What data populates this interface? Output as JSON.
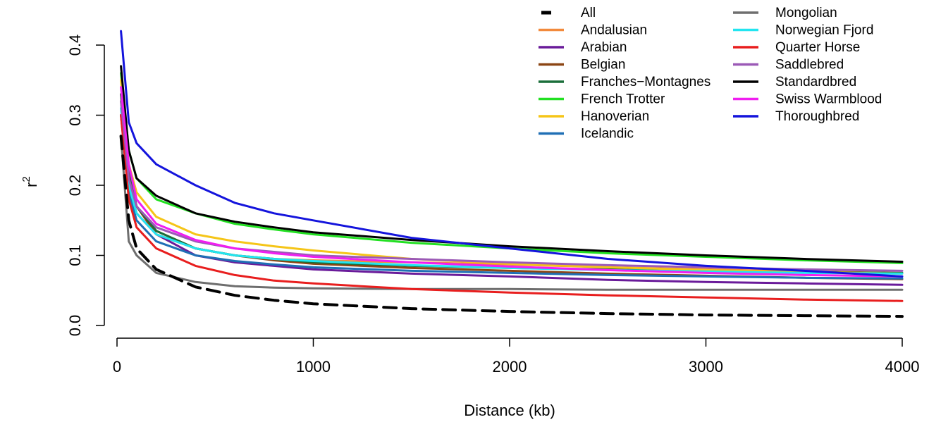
{
  "chart_data": {
    "type": "line",
    "title": "",
    "xlabel": "Distance (kb)",
    "ylabel": "r",
    "ylabel_superscript": "2",
    "xlim": [
      0,
      4000
    ],
    "ylim": [
      0,
      0.42
    ],
    "xticks": [
      0,
      1000,
      2000,
      3000,
      4000
    ],
    "yticks": [
      0.0,
      0.1,
      0.2,
      0.3,
      0.4
    ],
    "xtick_labels": [
      "0",
      "1000",
      "2000",
      "3000",
      "4000"
    ],
    "ytick_labels": [
      "0.0",
      "0.1",
      "0.2",
      "0.3",
      "0.4"
    ],
    "grid": false,
    "legend_position": "top-right",
    "x": [
      20,
      60,
      100,
      200,
      400,
      600,
      800,
      1000,
      1500,
      2000,
      2500,
      3000,
      3500,
      4000
    ],
    "series": [
      {
        "name": "All",
        "color": "#000000",
        "dashed": true,
        "values": [
          0.27,
          0.15,
          0.11,
          0.08,
          0.055,
          0.043,
          0.036,
          0.031,
          0.024,
          0.02,
          0.017,
          0.015,
          0.014,
          0.013
        ]
      },
      {
        "name": "Andalusian",
        "color": "#f28a3c",
        "values": [
          0.33,
          0.22,
          0.17,
          0.135,
          0.11,
          0.1,
          0.095,
          0.093,
          0.09,
          0.087,
          0.083,
          0.08,
          0.077,
          0.075
        ]
      },
      {
        "name": "Arabian",
        "color": "#6a1b9a",
        "values": [
          0.3,
          0.2,
          0.16,
          0.13,
          0.1,
          0.09,
          0.085,
          0.08,
          0.074,
          0.07,
          0.065,
          0.062,
          0.06,
          0.058
        ]
      },
      {
        "name": "Belgian",
        "color": "#8b4513",
        "values": [
          0.32,
          0.21,
          0.17,
          0.13,
          0.11,
          0.1,
          0.093,
          0.088,
          0.082,
          0.078,
          0.074,
          0.071,
          0.068,
          0.066
        ]
      },
      {
        "name": "Franches−Montagnes",
        "color": "#1b6e3a",
        "values": [
          0.33,
          0.22,
          0.17,
          0.135,
          0.11,
          0.1,
          0.095,
          0.09,
          0.085,
          0.082,
          0.08,
          0.078,
          0.076,
          0.075
        ]
      },
      {
        "name": "French Trotter",
        "color": "#22e022",
        "values": [
          0.36,
          0.25,
          0.21,
          0.18,
          0.16,
          0.145,
          0.137,
          0.13,
          0.118,
          0.11,
          0.103,
          0.098,
          0.093,
          0.089
        ]
      },
      {
        "name": "Hanoverian",
        "color": "#f5c518",
        "values": [
          0.35,
          0.23,
          0.19,
          0.155,
          0.13,
          0.12,
          0.113,
          0.107,
          0.095,
          0.088,
          0.083,
          0.079,
          0.076,
          0.074
        ]
      },
      {
        "name": "Icelandic",
        "color": "#1f6fb5",
        "values": [
          0.3,
          0.19,
          0.15,
          0.12,
          0.1,
          0.092,
          0.087,
          0.083,
          0.078,
          0.075,
          0.072,
          0.07,
          0.068,
          0.067
        ]
      },
      {
        "name": "Mongolian",
        "color": "#6e6e6e",
        "values": [
          0.27,
          0.12,
          0.1,
          0.075,
          0.062,
          0.056,
          0.054,
          0.053,
          0.052,
          0.052,
          0.051,
          0.051,
          0.051,
          0.051
        ]
      },
      {
        "name": "Norwegian Fjord",
        "color": "#22e5f0",
        "values": [
          0.31,
          0.2,
          0.16,
          0.13,
          0.11,
          0.1,
          0.095,
          0.092,
          0.086,
          0.082,
          0.079,
          0.077,
          0.075,
          0.074
        ]
      },
      {
        "name": "Quarter Horse",
        "color": "#e81e1e",
        "values": [
          0.3,
          0.18,
          0.14,
          0.11,
          0.085,
          0.072,
          0.064,
          0.06,
          0.052,
          0.047,
          0.043,
          0.04,
          0.037,
          0.035
        ]
      },
      {
        "name": "Saddlebred",
        "color": "#9b59b6",
        "values": [
          0.32,
          0.21,
          0.17,
          0.14,
          0.12,
          0.11,
          0.105,
          0.1,
          0.095,
          0.09,
          0.086,
          0.083,
          0.08,
          0.078
        ]
      },
      {
        "name": "Standardbred",
        "color": "#000000",
        "values": [
          0.37,
          0.25,
          0.21,
          0.185,
          0.16,
          0.148,
          0.14,
          0.133,
          0.122,
          0.113,
          0.106,
          0.1,
          0.095,
          0.091
        ]
      },
      {
        "name": "Swiss Warmblood",
        "color": "#f01ef0",
        "values": [
          0.34,
          0.23,
          0.18,
          0.145,
          0.122,
          0.11,
          0.103,
          0.098,
          0.09,
          0.084,
          0.079,
          0.075,
          0.072,
          0.07
        ]
      },
      {
        "name": "Thoroughbred",
        "color": "#1414dc",
        "values": [
          0.42,
          0.29,
          0.26,
          0.23,
          0.2,
          0.175,
          0.16,
          0.15,
          0.125,
          0.11,
          0.095,
          0.085,
          0.078,
          0.07
        ]
      }
    ]
  }
}
